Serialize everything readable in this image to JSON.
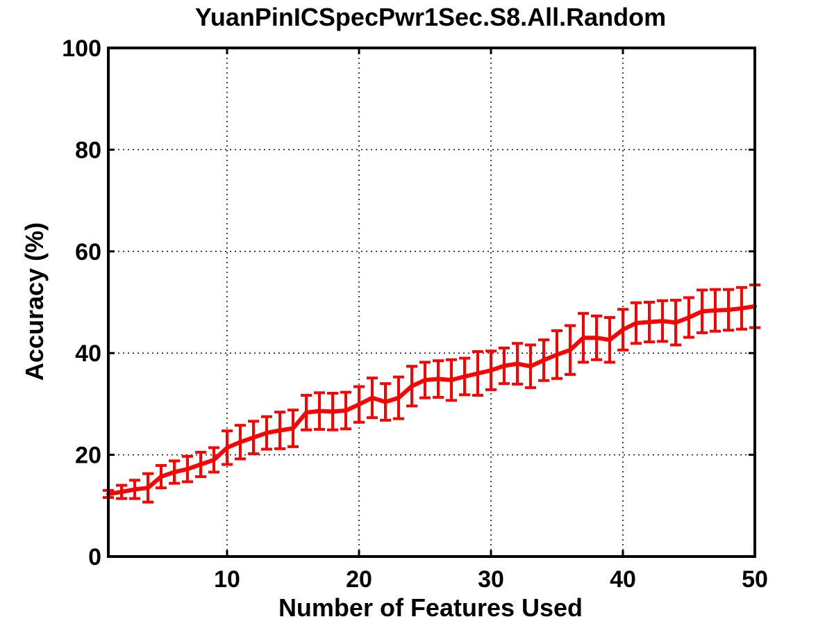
{
  "chart_data": {
    "type": "line",
    "title": "YuanPinICSpecPwr1Sec.S8.All.Random",
    "xlabel": "Number of Features Used",
    "ylabel": "Accuracy (%)",
    "xlim": [
      1,
      50
    ],
    "ylim": [
      0,
      100
    ],
    "x_ticks": [
      10,
      20,
      30,
      40,
      50
    ],
    "y_ticks": [
      0,
      20,
      40,
      60,
      80,
      100
    ],
    "x_tick_labels": [
      "10",
      "20",
      "30",
      "40",
      "50"
    ],
    "y_tick_labels": [
      "0",
      "20",
      "40",
      "60",
      "80",
      "100"
    ],
    "grid": true,
    "grid_style": "dotted",
    "line_color": "#ff0000",
    "error_bars": true,
    "series": [
      {
        "x": [
          1,
          2,
          3,
          4,
          5,
          6,
          7,
          8,
          9,
          10,
          11,
          12,
          13,
          14,
          15,
          16,
          17,
          18,
          19,
          20,
          21,
          22,
          23,
          24,
          25,
          26,
          27,
          28,
          29,
          30,
          31,
          32,
          33,
          34,
          35,
          36,
          37,
          38,
          39,
          40,
          41,
          42,
          43,
          44,
          45,
          46,
          47,
          48,
          49,
          50
        ],
        "y": [
          12.3,
          12.7,
          13.2,
          13.5,
          15.7,
          16.6,
          17.2,
          18.1,
          19.0,
          21.4,
          22.5,
          23.4,
          24.3,
          24.8,
          25.2,
          28.3,
          28.6,
          28.5,
          28.7,
          29.9,
          31.2,
          30.4,
          31.2,
          33.5,
          34.7,
          34.9,
          34.7,
          35.4,
          36.0,
          36.6,
          37.5,
          37.9,
          37.4,
          38.6,
          39.7,
          40.6,
          43.0,
          43.0,
          42.6,
          44.6,
          45.9,
          46.1,
          46.3,
          46.0,
          47.0,
          48.2,
          48.4,
          48.5,
          48.8,
          49.2
        ],
        "err": [
          0.7,
          1.3,
          1.8,
          2.8,
          2.2,
          2.2,
          2.5,
          2.4,
          2.4,
          3.3,
          3.3,
          3.2,
          3.2,
          3.6,
          3.6,
          3.4,
          3.6,
          3.6,
          3.6,
          3.5,
          3.9,
          3.6,
          4.1,
          3.9,
          3.5,
          3.6,
          4.0,
          3.6,
          4.3,
          3.8,
          3.5,
          4.0,
          4.2,
          4.0,
          4.7,
          4.8,
          4.8,
          4.3,
          4.4,
          4.0,
          4.0,
          3.9,
          4.0,
          4.4,
          3.9,
          4.2,
          4.1,
          4.0,
          4.1,
          4.2
        ]
      }
    ]
  }
}
